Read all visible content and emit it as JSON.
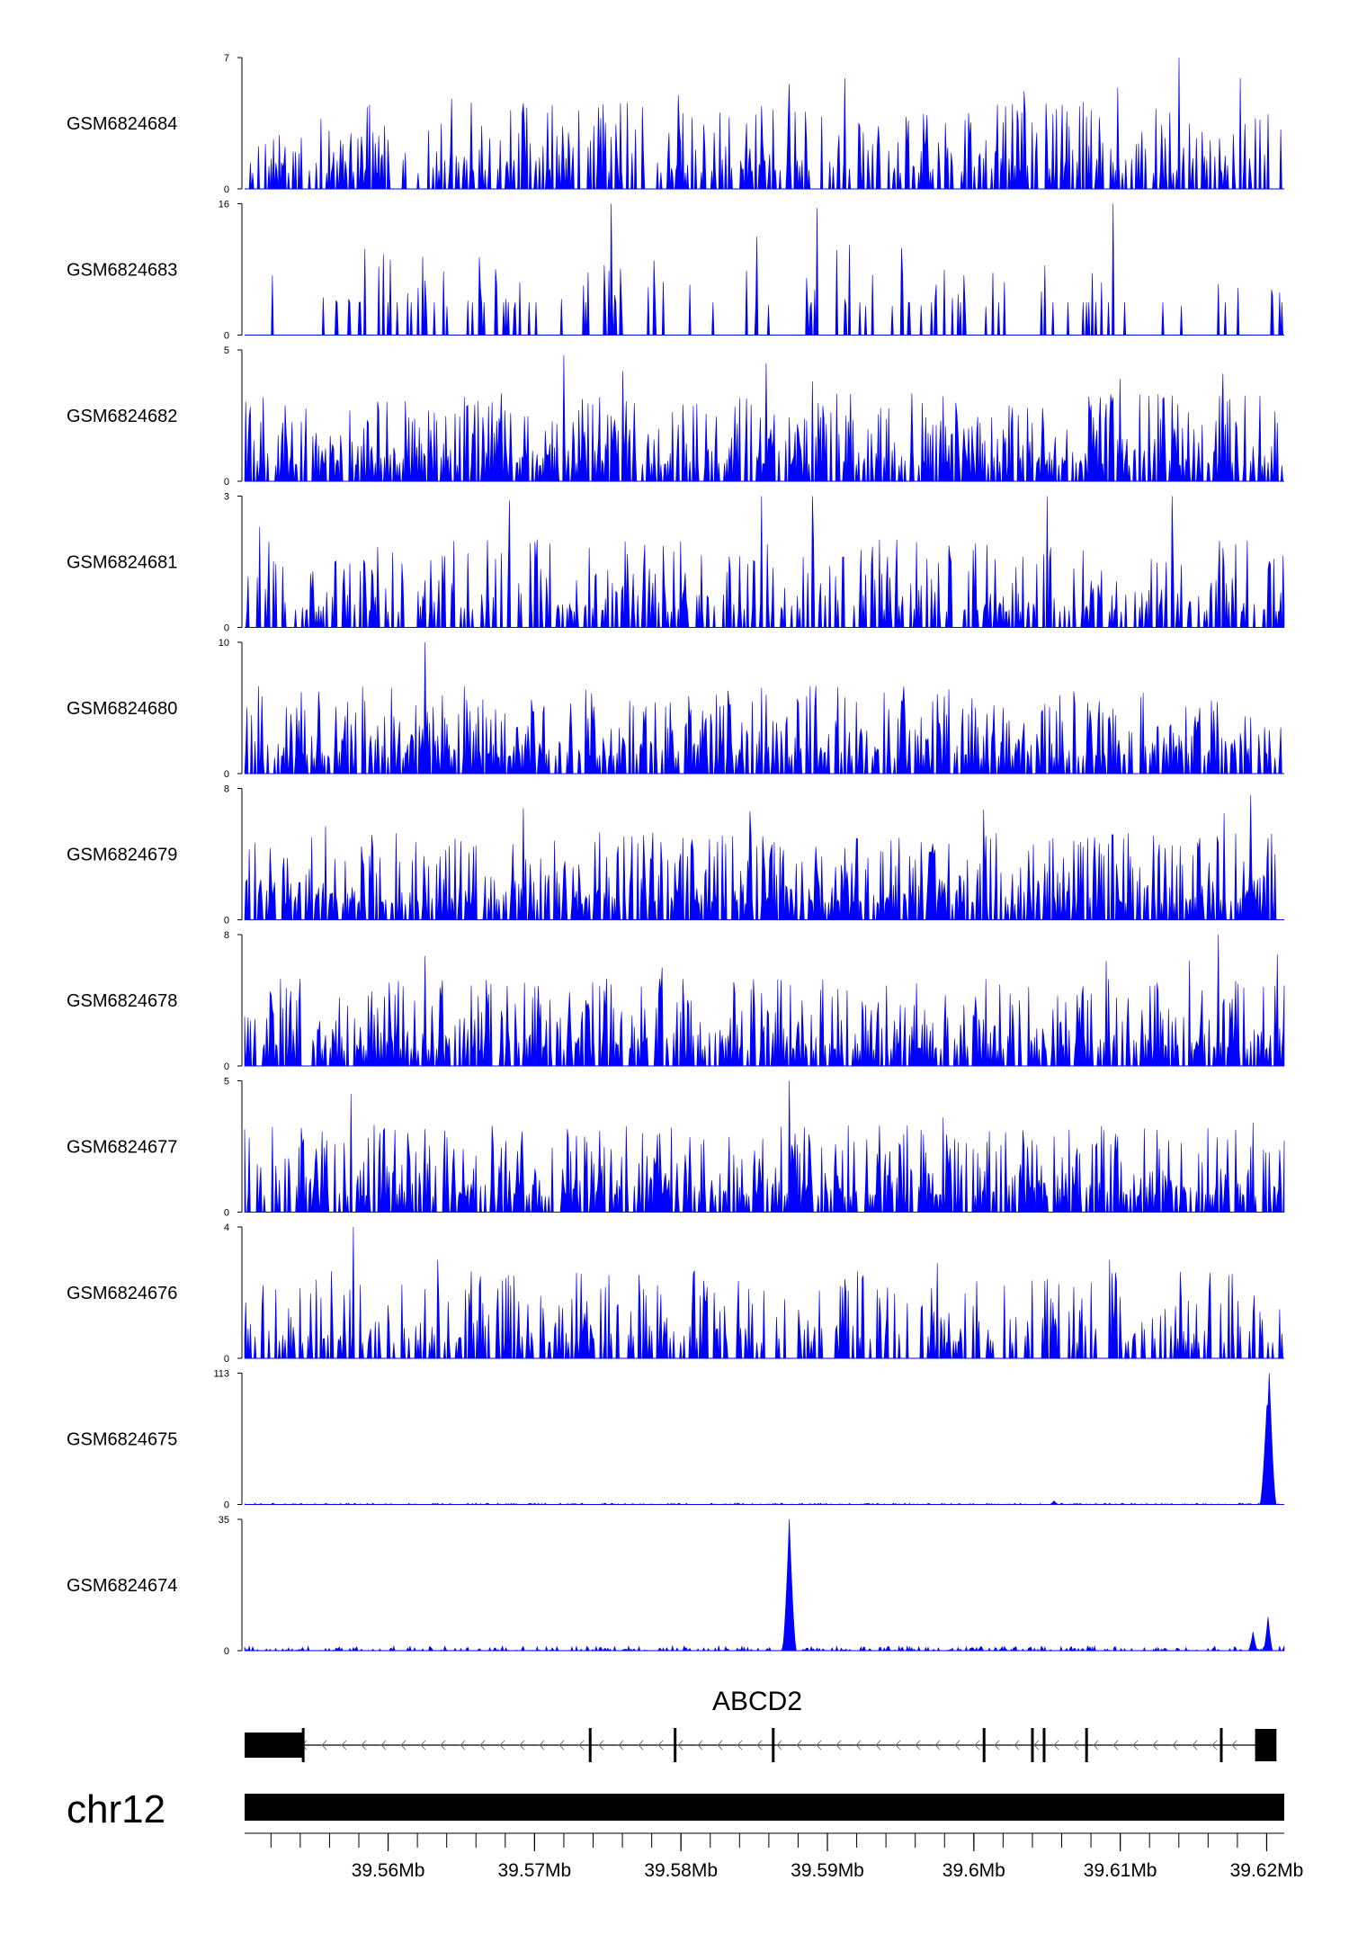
{
  "chart_data": {
    "type": "area",
    "chromosome": "chr12",
    "region_mb": [
      39.5502,
      39.6212
    ],
    "track_color": "#0000ff",
    "gene": {
      "name": "ABCD2",
      "strand": "-",
      "span_mb": [
        39.5502,
        39.6204
      ],
      "utr_blocks_mb": [
        [
          39.5502,
          39.5542
        ]
      ],
      "exons_mb": [
        39.5542,
        39.5738,
        39.5796,
        39.5863,
        39.6007,
        39.604,
        39.6048,
        39.6077,
        39.6169,
        39.6197,
        39.6203
      ]
    },
    "x_ticks_mb": [
      39.56,
      39.57,
      39.58,
      39.59,
      39.6,
      39.61,
      39.62
    ],
    "x_tick_labels": [
      "39.56Mb",
      "39.57Mb",
      "39.58Mb",
      "39.59Mb",
      "39.6Mb",
      "39.61Mb",
      "39.62Mb"
    ],
    "minor_tick_step_mb": 0.002,
    "tracks": [
      {
        "name": "GSM6824684",
        "ymax": 7,
        "ymin": 0,
        "pattern": "sparse-spiky",
        "peaks_mb": [
          [
            39.5643,
            4.8
          ],
          [
            39.5798,
            5.0
          ],
          [
            39.5874,
            5.6
          ],
          [
            39.5912,
            5.9
          ],
          [
            39.6034,
            5.2
          ],
          [
            39.6098,
            5.4
          ],
          [
            39.614,
            7.0
          ],
          [
            39.6182,
            5.9
          ]
        ]
      },
      {
        "name": "GSM6824683",
        "ymax": 16,
        "ymin": 0,
        "pattern": "very-sparse-spiky",
        "peaks_mb": [
          [
            39.5752,
            16.0
          ],
          [
            39.5852,
            12.0
          ],
          [
            39.5893,
            15.5
          ],
          [
            39.5915,
            11.0
          ],
          [
            39.6095,
            16.0
          ],
          [
            39.6172,
            4.0
          ]
        ]
      },
      {
        "name": "GSM6824682",
        "ymax": 5,
        "ymin": 0,
        "pattern": "dense-spiky",
        "peaks_mb": [
          [
            39.5515,
            3.2
          ],
          [
            39.572,
            4.8
          ],
          [
            39.576,
            4.2
          ],
          [
            39.5858,
            4.5
          ],
          [
            39.589,
            3.8
          ],
          [
            39.61,
            3.9
          ],
          [
            39.617,
            4.1
          ]
        ]
      },
      {
        "name": "GSM6824681",
        "ymax": 3,
        "ymin": 0,
        "pattern": "sparse-spiky",
        "peaks_mb": [
          [
            39.5512,
            2.3
          ],
          [
            39.5683,
            2.9
          ],
          [
            39.5855,
            3.0
          ],
          [
            39.589,
            3.0
          ],
          [
            39.605,
            3.0
          ],
          [
            39.6135,
            3.0
          ]
        ]
      },
      {
        "name": "GSM6824680",
        "ymax": 10,
        "ymin": 0,
        "pattern": "dense-spiky",
        "peaks_mb": [
          [
            39.5625,
            10.0
          ],
          [
            39.5619,
            5.2
          ],
          [
            39.5793,
            5.0
          ],
          [
            39.5886,
            5.9
          ],
          [
            39.5912,
            5.8
          ],
          [
            39.6154,
            5.0
          ]
        ]
      },
      {
        "name": "GSM6824679",
        "ymax": 8,
        "ymin": 0,
        "pattern": "dense-spiky",
        "peaks_mb": [
          [
            39.5557,
            5.7
          ],
          [
            39.5692,
            6.8
          ],
          [
            39.5847,
            6.6
          ],
          [
            39.6007,
            6.7
          ],
          [
            39.6171,
            6.5
          ],
          [
            39.6189,
            7.6
          ]
        ]
      },
      {
        "name": "GSM6824678",
        "ymax": 8,
        "ymin": 0,
        "pattern": "dense-spiky",
        "peaks_mb": [
          [
            39.5625,
            6.7
          ],
          [
            39.5787,
            6.0
          ],
          [
            39.609,
            6.4
          ],
          [
            39.6147,
            6.4
          ],
          [
            39.6167,
            8.0
          ],
          [
            39.6207,
            6.8
          ]
        ]
      },
      {
        "name": "GSM6824677",
        "ymax": 5,
        "ymin": 0,
        "pattern": "dense-spiky",
        "peaks_mb": [
          [
            39.5575,
            4.5
          ],
          [
            39.5597,
            3.1
          ],
          [
            39.5874,
            5.0
          ],
          [
            39.5874,
            5.0
          ],
          [
            39.5979,
            3.6
          ],
          [
            39.616,
            3.2
          ],
          [
            39.6191,
            3.4
          ]
        ]
      },
      {
        "name": "GSM6824676",
        "ymax": 4,
        "ymin": 0,
        "pattern": "sparse-spiky",
        "peaks_mb": [
          [
            39.5576,
            4.0
          ],
          [
            39.5634,
            3.0
          ],
          [
            39.5684,
            2.0
          ],
          [
            39.5975,
            2.9
          ],
          [
            39.6093,
            3.0
          ],
          [
            39.608,
            2.3
          ]
        ]
      },
      {
        "name": "GSM6824675",
        "ymax": 113,
        "ymin": 0,
        "pattern": "flat",
        "peaks_mb": [
          [
            39.6202,
            113.0
          ],
          [
            39.62,
            85.0
          ],
          [
            39.6055,
            3.0
          ]
        ]
      },
      {
        "name": "GSM6824674",
        "ymax": 35,
        "ymin": 0,
        "pattern": "low",
        "peaks_mb": [
          [
            39.5874,
            35.0
          ],
          [
            39.6201,
            9.0
          ],
          [
            39.6191,
            5.0
          ]
        ]
      }
    ]
  }
}
